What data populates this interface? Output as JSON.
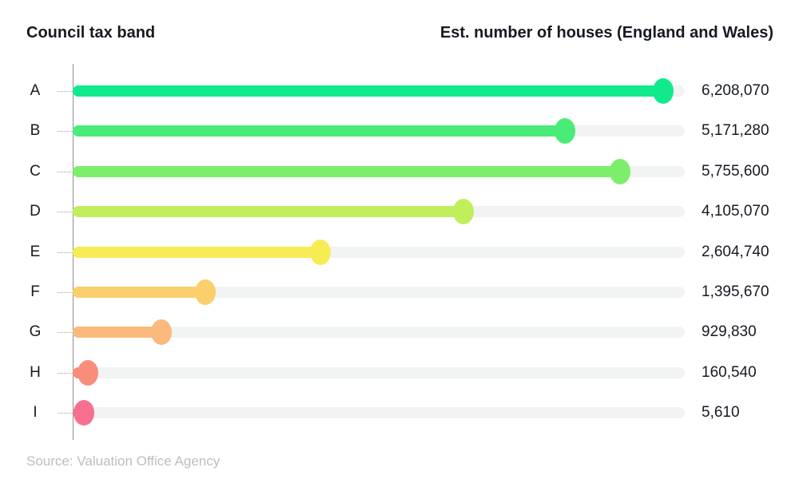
{
  "header": {
    "left": "Council tax band",
    "right": "Est. number of houses (England and Wales)"
  },
  "source_note": "Source: Valuation Office Agency",
  "chart_data": {
    "type": "bar",
    "variant": "horizontal-lollipop",
    "title": "",
    "xlabel": "Est. number of houses (England and Wales)",
    "ylabel": "Council tax band",
    "categories": [
      "A",
      "B",
      "C",
      "D",
      "E",
      "F",
      "G",
      "H",
      "I"
    ],
    "values": [
      6208070,
      5171280,
      5755600,
      4105070,
      2604740,
      1395670,
      929830,
      160540,
      5610
    ],
    "value_labels": [
      "6,208,070",
      "5,171,280",
      "5,755,600",
      "4,105,070",
      "2,604,740",
      "1,395,670",
      "929,830",
      "160,540",
      "5,610"
    ],
    "bar_colors": [
      "#12e98c",
      "#48ec76",
      "#7dee6c",
      "#c1ee5b",
      "#f8ec55",
      "#fbcf6b",
      "#fbb97d",
      "#f88d7c",
      "#f7708f"
    ],
    "xlim": [
      0,
      6208070
    ],
    "grid": false,
    "legend": false,
    "track_color": "#f2f3f3",
    "axis_color": "#8f8f8f",
    "text_color": "#161a21",
    "source_color": "#b9bfbc"
  }
}
